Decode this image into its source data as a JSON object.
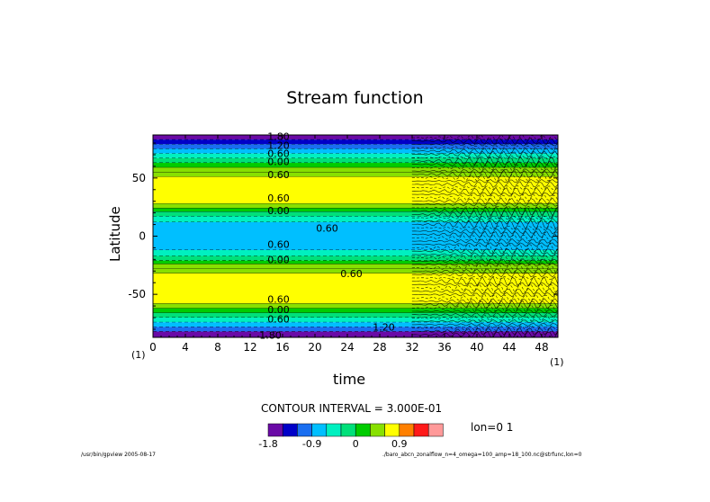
{
  "chart_data": {
    "type": "heatmap",
    "title": "Stream function",
    "xlabel": "time",
    "ylabel": "Latitude",
    "x_unit_left": "(1)",
    "x_unit_right": "(1)",
    "xlim": [
      0,
      50
    ],
    "ylim": [
      -87,
      87
    ],
    "x_ticks": [
      0,
      4,
      8,
      12,
      16,
      20,
      24,
      28,
      32,
      36,
      40,
      44,
      48
    ],
    "y_ticks": [
      50,
      0,
      -50
    ],
    "contour_interval": "CONTOUR INTERVAL = 3.000E-01",
    "lon": "lon=0 1",
    "colorbar": {
      "colors": [
        "#6a0aa6",
        "#0000c8",
        "#1a6ef0",
        "#00bfff",
        "#00f0c0",
        "#00e07a",
        "#00cc00",
        "#88e000",
        "#ffff00",
        "#ff8000",
        "#ff1a1a",
        "#ff9999"
      ],
      "tick_labels": [
        "-1.8",
        "-0.9",
        "0",
        "0.9"
      ]
    },
    "bands": [
      {
        "from": 83,
        "to": 87,
        "value": -1.75
      },
      {
        "from": 79,
        "to": 83,
        "value": -1.5
      },
      {
        "from": 75,
        "to": 79,
        "value": -1.2
      },
      {
        "from": 71,
        "to": 75,
        "value": -0.9
      },
      {
        "from": 67,
        "to": 71,
        "value": -0.6
      },
      {
        "from": 63,
        "to": 67,
        "value": -0.3
      },
      {
        "from": 59,
        "to": 63,
        "value": 0.1
      },
      {
        "from": 55,
        "to": 59,
        "value": 0.35
      },
      {
        "from": 51,
        "to": 55,
        "value": 0.55
      },
      {
        "from": 28,
        "to": 51,
        "value": 0.75
      },
      {
        "from": 24,
        "to": 28,
        "value": 0.45
      },
      {
        "from": 21,
        "to": 24,
        "value": 0.1
      },
      {
        "from": 17,
        "to": 21,
        "value": -0.2
      },
      {
        "from": 12,
        "to": 17,
        "value": -0.4
      },
      {
        "from": -12,
        "to": 12,
        "value": -0.65
      },
      {
        "from": -17,
        "to": -12,
        "value": -0.4
      },
      {
        "from": -21,
        "to": -17,
        "value": -0.2
      },
      {
        "from": -24,
        "to": -21,
        "value": 0.1
      },
      {
        "from": -28,
        "to": -24,
        "value": 0.4
      },
      {
        "from": -32,
        "to": -28,
        "value": 0.55
      },
      {
        "from": -58,
        "to": -32,
        "value": 0.75
      },
      {
        "from": -62,
        "to": -58,
        "value": 0.45
      },
      {
        "from": -66,
        "to": -62,
        "value": 0.1
      },
      {
        "from": -70,
        "to": -66,
        "value": -0.2
      },
      {
        "from": -74,
        "to": -70,
        "value": -0.5
      },
      {
        "from": -78,
        "to": -74,
        "value": -0.8
      },
      {
        "from": -82,
        "to": -78,
        "value": -1.1
      },
      {
        "from": -87,
        "to": -82,
        "value": -1.6
      }
    ],
    "contour_labels": [
      {
        "text": "1.80",
        "x": 15.5,
        "y": 86
      },
      {
        "text": "1.20",
        "x": 15.5,
        "y": 78
      },
      {
        "text": "0.60",
        "x": 15.5,
        "y": 71
      },
      {
        "text": "0.00",
        "x": 15.5,
        "y": 64
      },
      {
        "text": "0.60",
        "x": 15.5,
        "y": 53
      },
      {
        "text": "0.60",
        "x": 15.5,
        "y": 33
      },
      {
        "text": "0.00",
        "x": 15.5,
        "y": 22
      },
      {
        "text": "0.60",
        "x": 21.5,
        "y": 7
      },
      {
        "text": "0.60",
        "x": 15.5,
        "y": -7
      },
      {
        "text": "0.00",
        "x": 15.5,
        "y": -20
      },
      {
        "text": "0.60",
        "x": 24.5,
        "y": -32
      },
      {
        "text": "0.60",
        "x": 15.5,
        "y": -54
      },
      {
        "text": "0.00",
        "x": 15.5,
        "y": -63
      },
      {
        "text": "0.60",
        "x": 15.5,
        "y": -71
      },
      {
        "text": "1.20",
        "x": 28.5,
        "y": -78
      },
      {
        "text": "1.80",
        "x": 14.5,
        "y": -85
      }
    ],
    "turbulence_onset_time": 32
  },
  "footer": {
    "left": "/usr/bin/gpview  2005-08-17",
    "right": "./baro_abcn_zonalflow_n=4_omega=100_amp=18_100.nc@strfunc,lon=0"
  }
}
